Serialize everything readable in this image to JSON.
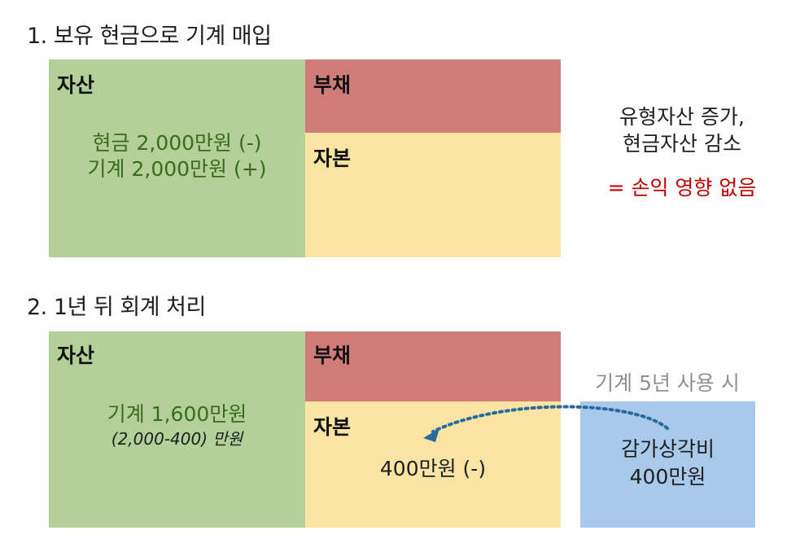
{
  "section1": {
    "heading": "1. 보유 현금으로 기계 매입",
    "assets_label": "자산",
    "liabilities_label": "부채",
    "equity_label": "자본",
    "asset_lines": [
      "현금 2,000만원 (-)",
      "기계 2,000만원 (+)"
    ],
    "note_lines": [
      "유형자산 증가,",
      "현금자산 감소"
    ],
    "note_result": "= 손익 영향 없음"
  },
  "section2": {
    "heading": "2. 1년 뒤 회계 처리",
    "assets_label": "자산",
    "liabilities_label": "부채",
    "equity_label": "자본",
    "asset_line": "기계 1,600만원",
    "asset_subline": "(2,000-400) 만원",
    "equity_value": "400만원 (-)",
    "usage_note": "기계 5년 사용 시",
    "depreciation_lines": [
      "감가상각비",
      "400만원"
    ]
  },
  "colors": {
    "assets": "#b2d098",
    "liabilities": "#d17c78",
    "equity": "#f9e4a4",
    "depreciation": "#a9c9ea",
    "arrow": "#2b6aa0",
    "highlight_red": "#c00000"
  }
}
